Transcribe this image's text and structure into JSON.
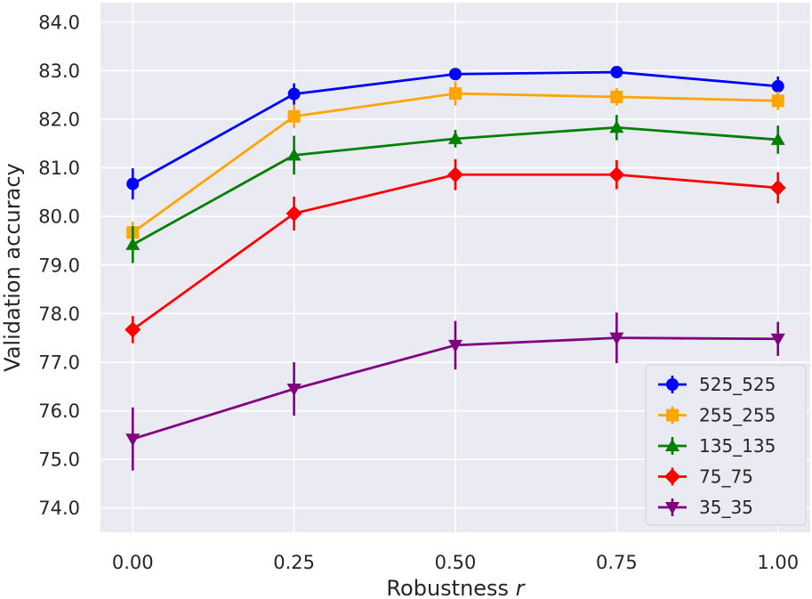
{
  "chart_data": {
    "type": "line",
    "title": "",
    "xlabel": "Robustness",
    "xlabel_var": "r",
    "ylabel": "Validation accuracy",
    "x": [
      0.0,
      0.25,
      0.5,
      0.75,
      1.0
    ],
    "x_tick_labels": [
      "0.00",
      "0.25",
      "0.50",
      "0.75",
      "1.00"
    ],
    "y_tick_labels": [
      "74.0",
      "75.0",
      "76.0",
      "77.0",
      "78.0",
      "79.0",
      "80.0",
      "81.0",
      "82.0",
      "83.0",
      "84.0"
    ],
    "xlim": [
      -0.05,
      1.05
    ],
    "ylim": [
      73.5,
      84.4
    ],
    "grid": true,
    "legend_position": "lower-right",
    "series": [
      {
        "name": "525_525",
        "color": "#0000ff",
        "marker": "circle",
        "values": [
          80.67,
          82.52,
          82.93,
          82.97,
          82.68
        ],
        "errors": [
          0.32,
          0.22,
          0.12,
          0.1,
          0.2
        ]
      },
      {
        "name": "255_255",
        "color": "#ffa500",
        "marker": "square",
        "values": [
          79.67,
          82.06,
          82.53,
          82.46,
          82.38
        ],
        "errors": [
          0.22,
          0.24,
          0.25,
          0.18,
          0.19
        ]
      },
      {
        "name": "135_135",
        "color": "#008000",
        "marker": "triangle-up",
        "values": [
          79.42,
          81.26,
          81.6,
          81.83,
          81.58
        ],
        "errors": [
          0.38,
          0.4,
          0.18,
          0.26,
          0.29
        ]
      },
      {
        "name": "75_75",
        "color": "#ff0000",
        "marker": "diamond",
        "values": [
          77.67,
          80.06,
          80.86,
          80.86,
          80.59
        ],
        "errors": [
          0.28,
          0.35,
          0.32,
          0.3,
          0.32
        ]
      },
      {
        "name": "35_35",
        "color": "#800080",
        "marker": "triangle-down",
        "values": [
          75.42,
          76.45,
          77.35,
          77.5,
          77.48
        ],
        "errors": [
          0.65,
          0.55,
          0.5,
          0.52,
          0.35
        ]
      }
    ]
  }
}
